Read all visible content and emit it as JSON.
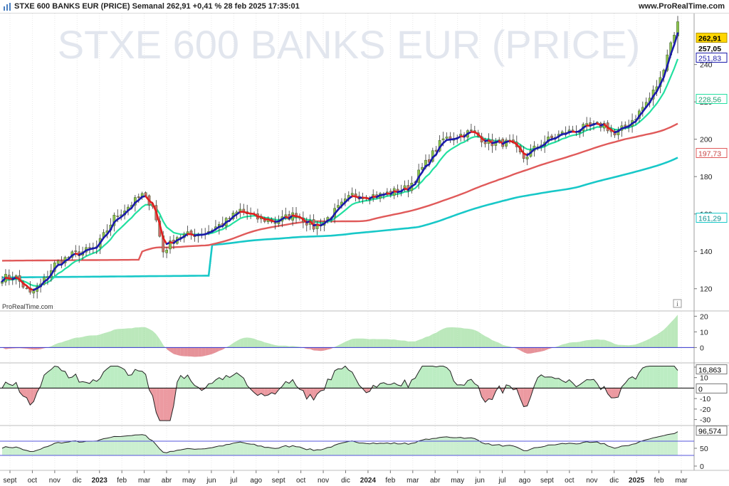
{
  "header": {
    "title": "STXE 600 BANKS EUR (PRICE) Semanal 262,91 +0,41 % 28 feb 2025 17:35:01",
    "website": "www.ProRealTime.com"
  },
  "watermark": "STXE 600 BANKS EUR (PRICE)",
  "source_label": "ProRealTime.com",
  "info_icon": "info-icon",
  "colors": {
    "candle_up": "#8bc34a",
    "candle_down": "#d06a6a",
    "ma_fast_up": "#1a1aaa",
    "ma_fast_down": "#e02020",
    "ma_mid": "#22e0a0",
    "ma_slow": "#e05a5a",
    "ma_long": "#18c8c8"
  },
  "chart_data": [
    {
      "type": "candlestick",
      "title": "STXE 600 BANKS EUR (PRICE)",
      "ylim": [
        110,
        265
      ],
      "yticks": [
        120,
        140,
        160,
        180,
        200,
        220,
        240
      ],
      "price_labels": [
        {
          "text": "262,91",
          "value": 262.91,
          "style": "last"
        },
        {
          "text": "257,05",
          "value": 257.05,
          "style": "plain"
        },
        {
          "text": "251,83",
          "value": 251.83,
          "style": "fast_ma"
        },
        {
          "text": "228,56",
          "value": 228.56,
          "style": "mid_ma"
        },
        {
          "text": "197,73",
          "value": 197.73,
          "style": "slow_ma"
        },
        {
          "text": "161,29",
          "value": 161.29,
          "style": "long_ma"
        }
      ],
      "x_labels": [
        "sept",
        "oct",
        "nov",
        "dic",
        "2023",
        "feb",
        "mar",
        "abr",
        "may",
        "jun",
        "jul",
        "ago",
        "sept",
        "oct",
        "nov",
        "dic",
        "2024",
        "feb",
        "mar",
        "abr",
        "may",
        "jun",
        "jul",
        "ago",
        "sept",
        "oct",
        "nov",
        "dic",
        "2025",
        "feb",
        "mar"
      ],
      "x_bold": [
        "2023",
        "2024",
        "2025"
      ],
      "close_anchors": [
        [
          0,
          126
        ],
        [
          4,
          126
        ],
        [
          8,
          117
        ],
        [
          11,
          122
        ],
        [
          15,
          133
        ],
        [
          20,
          138
        ],
        [
          27,
          142
        ],
        [
          32,
          158
        ],
        [
          40,
          170
        ],
        [
          43,
          165
        ],
        [
          45,
          148
        ],
        [
          46,
          140
        ],
        [
          50,
          148
        ],
        [
          58,
          150
        ],
        [
          64,
          156
        ],
        [
          68,
          162
        ],
        [
          72,
          158
        ],
        [
          78,
          156
        ],
        [
          84,
          160
        ],
        [
          89,
          153
        ],
        [
          92,
          156
        ],
        [
          100,
          170
        ],
        [
          108,
          170
        ],
        [
          116,
          174
        ],
        [
          126,
          200
        ],
        [
          134,
          204
        ],
        [
          139,
          198
        ],
        [
          145,
          198
        ],
        [
          149,
          190
        ],
        [
          154,
          198
        ],
        [
          160,
          203
        ],
        [
          166,
          206
        ],
        [
          172,
          208
        ],
        [
          175,
          202
        ],
        [
          181,
          212
        ],
        [
          185,
          222
        ],
        [
          188,
          232
        ],
        [
          190,
          246
        ],
        [
          192,
          257
        ],
        [
          193,
          262.91
        ]
      ]
    },
    {
      "type": "area",
      "panel": "oscillator-1",
      "ylim": [
        -8,
        22
      ],
      "yticks": [
        20,
        10,
        0
      ],
      "reference_line": 0
    },
    {
      "type": "area",
      "panel": "oscillator-2",
      "ylim": [
        -33,
        22
      ],
      "yticks": [
        20,
        10,
        0,
        -10,
        -20,
        -30
      ],
      "reference_line": 0,
      "last_value_label": "16,863",
      "zero_label": "0"
    },
    {
      "type": "area",
      "panel": "oscillator-3",
      "ylim": [
        -8,
        108
      ],
      "yticks": [
        50,
        0
      ],
      "bands": [
        70,
        30
      ],
      "last_value_label": "96,574"
    }
  ]
}
